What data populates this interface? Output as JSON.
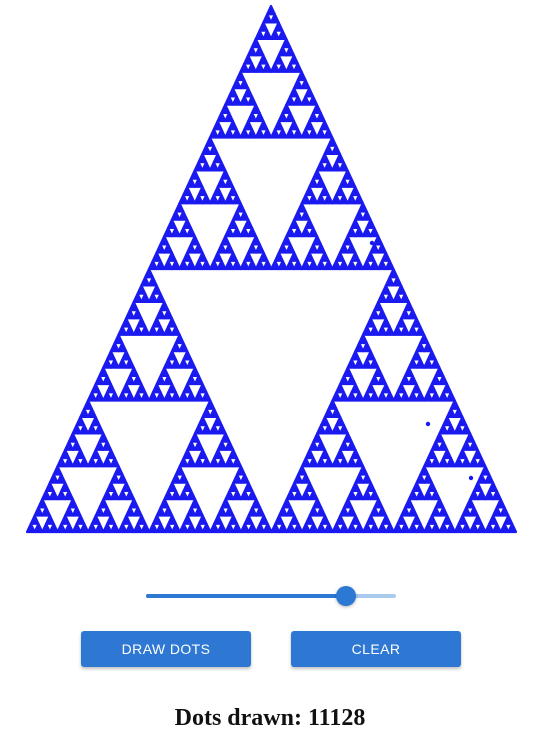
{
  "colors": {
    "dot": "#1a1af0",
    "accent": "#2b79d2",
    "accent_light": "#a9cbee"
  },
  "slider": {
    "value_fraction": 0.8
  },
  "buttons": {
    "draw_label": "DRAW DOTS",
    "clear_label": "CLEAR"
  },
  "counter": {
    "prefix": "Dots drawn:",
    "count": "11128"
  }
}
